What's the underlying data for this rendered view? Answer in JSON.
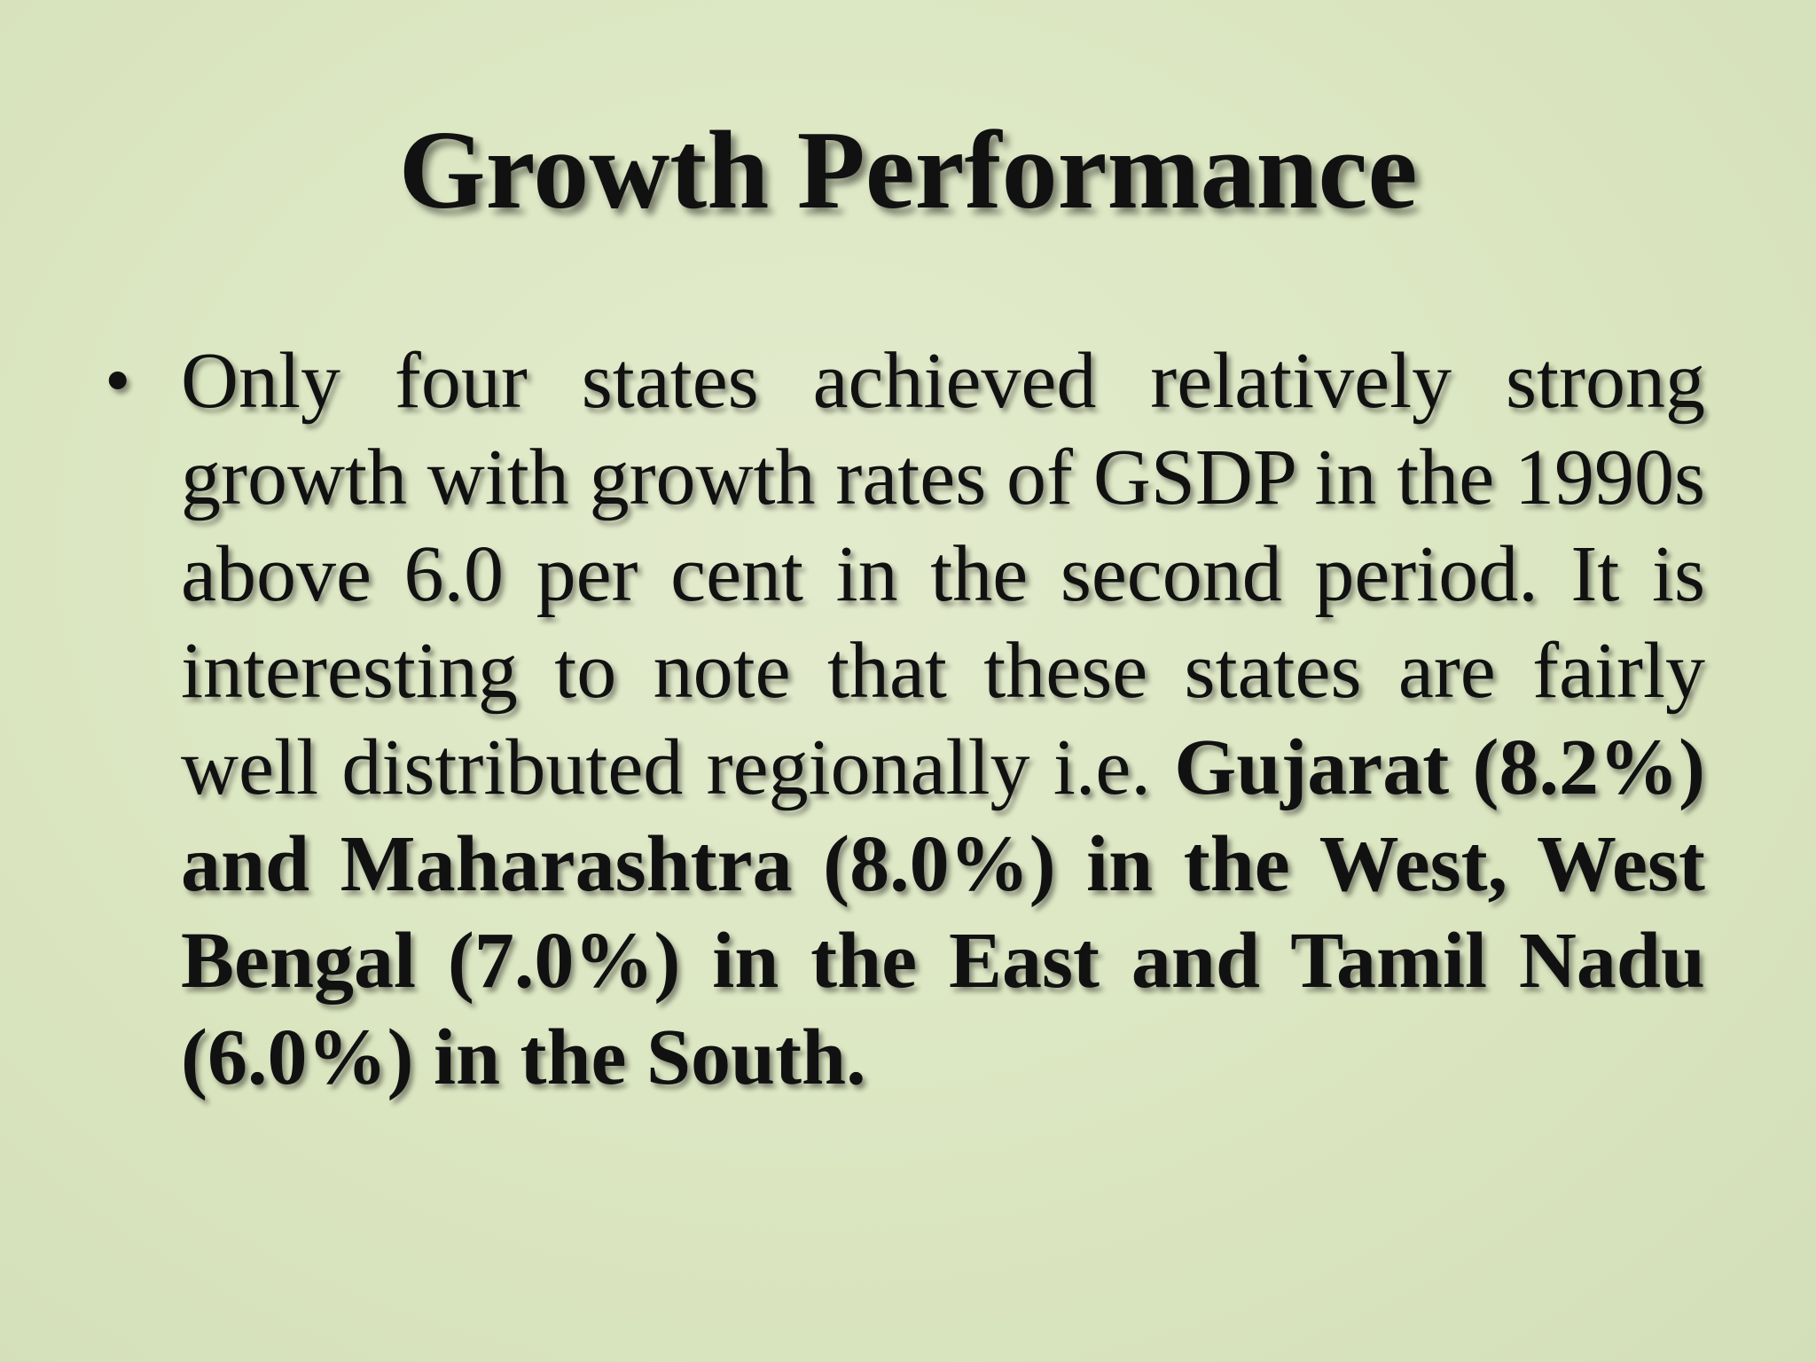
{
  "slide": {
    "title": "Growth Performance",
    "bullets": [
      {
        "marker": "•",
        "text_plain": "Only four states achieved relatively strong growth with growth rates of GSDP in the 1990s above 6.0 per cent in the second period. It is interesting to note that these states are fairly well distributed regionally i.e. ",
        "text_bold": "Gujarat (8.2%) and Maharashtra (8.0%) in the West, West Bengal (7.0%) in the East and Tamil Nadu (6.0%) in the South."
      }
    ]
  },
  "colors": {
    "background": "#dbe6c1",
    "text": "#111111"
  }
}
